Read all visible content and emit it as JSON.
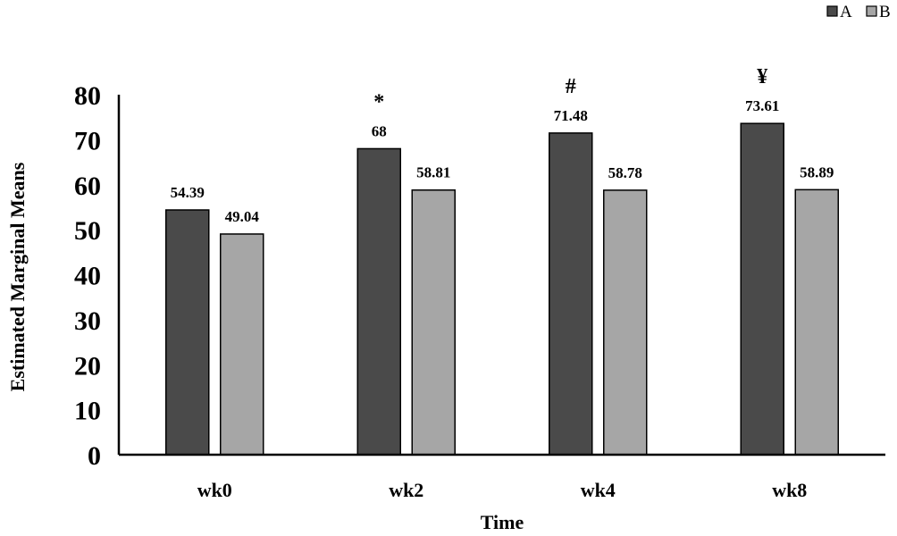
{
  "chart_data": {
    "type": "bar",
    "title": "",
    "xlabel": "Time",
    "ylabel": "Estimated Marginal Means",
    "ylim": [
      0,
      80
    ],
    "yticks": [
      0,
      10,
      20,
      30,
      40,
      50,
      60,
      70,
      80
    ],
    "grid": false,
    "legend_position": "top-right",
    "categories": [
      "wk0",
      "wk2",
      "wk4",
      "wk8"
    ],
    "series": [
      {
        "name": "A",
        "color": "#4a4a4a",
        "values": [
          54.39,
          68,
          71.48,
          73.61
        ],
        "labels": [
          "54.39",
          "68",
          "71.48",
          "73.61"
        ]
      },
      {
        "name": "B",
        "color": "#a6a6a6",
        "values": [
          49.04,
          58.81,
          58.78,
          58.89
        ],
        "labels": [
          "49.04",
          "58.81",
          "58.78",
          "58.89"
        ]
      }
    ],
    "annotations": [
      "",
      "*",
      "#",
      "¥"
    ]
  }
}
